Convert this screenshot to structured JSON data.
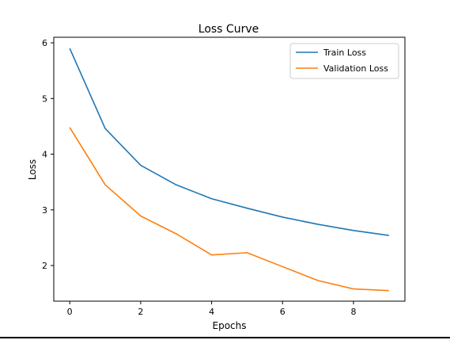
{
  "chart_data": {
    "type": "line",
    "title": "Loss Curve",
    "xlabel": "Epochs",
    "ylabel": "Loss",
    "x": [
      0,
      1,
      2,
      3,
      4,
      5,
      6,
      7,
      8,
      9
    ],
    "xlim": [
      -0.45,
      9.45
    ],
    "ylim": [
      1.36,
      6.1
    ],
    "xticks": [
      0,
      2,
      4,
      6,
      8
    ],
    "yticks": [
      2,
      3,
      4,
      5,
      6
    ],
    "grid": false,
    "legend": "top-right",
    "series": [
      {
        "name": "Train Loss",
        "color": "#1f77b4",
        "values": [
          5.9,
          4.46,
          3.8,
          3.45,
          3.2,
          3.03,
          2.87,
          2.74,
          2.63,
          2.54
        ]
      },
      {
        "name": "Validation Loss",
        "color": "#ff7f0e",
        "values": [
          4.48,
          3.45,
          2.89,
          2.57,
          2.19,
          2.23,
          1.98,
          1.73,
          1.58,
          1.55
        ]
      }
    ]
  }
}
